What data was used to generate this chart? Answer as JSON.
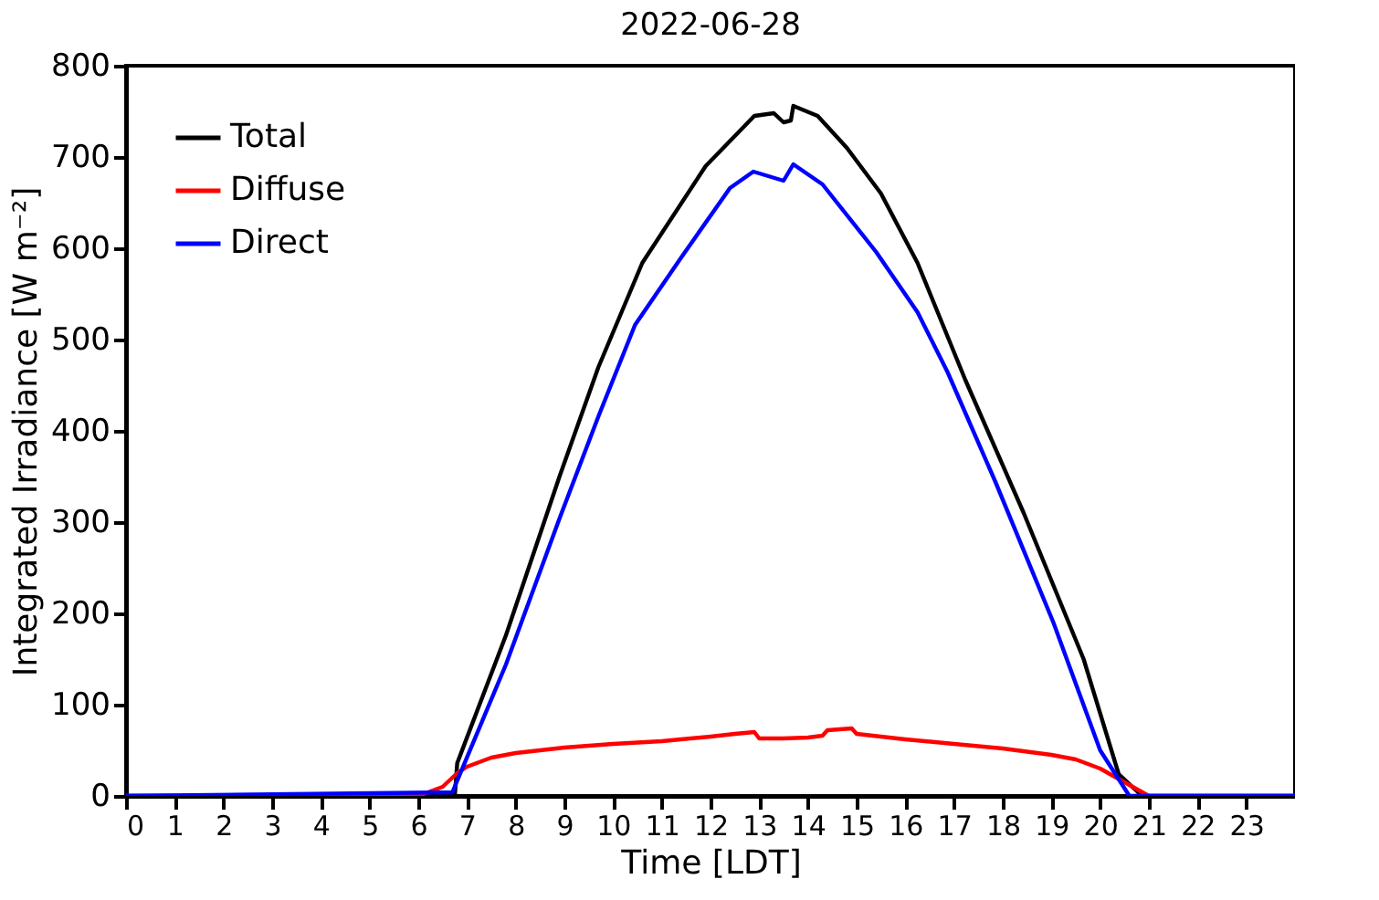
{
  "chart_data": {
    "type": "line",
    "title": "2022-06-28",
    "xlabel": "Time [LDT]",
    "ylabel": "Integrated Irradiance [W m⁻²]",
    "xlim": [
      0,
      24
    ],
    "xticks": [
      0,
      1,
      2,
      3,
      4,
      5,
      6,
      7,
      8,
      9,
      10,
      11,
      12,
      13,
      14,
      15,
      16,
      17,
      18,
      19,
      20,
      21,
      22,
      23
    ],
    "ylim": [
      0,
      800
    ],
    "yticks": [
      0,
      100,
      200,
      300,
      400,
      500,
      600,
      700,
      800
    ],
    "grid": false,
    "legend": "top left",
    "marker": "none",
    "line_style": "solid",
    "series": [
      {
        "name": "Total",
        "color": "#000000",
        "x": [
          0,
          6.75,
          6.8,
          7.8,
          8.9,
          9.7,
          10.6,
          11.9,
          12.9,
          13.3,
          13.5,
          13.65,
          13.7,
          14.2,
          14.8,
          15.5,
          16.25,
          17.23,
          18.43,
          19.66,
          20.38,
          20.86,
          24
        ],
        "values": [
          0,
          0,
          36,
          176,
          350,
          470,
          584,
          690,
          745,
          748,
          738,
          740,
          756,
          745,
          710,
          660,
          584,
          456,
          310,
          150,
          24,
          0,
          0
        ]
      },
      {
        "name": "Diffuse",
        "color": "#ff0000",
        "x": [
          0,
          6.0,
          6.5,
          6.8,
          7,
          7.5,
          8,
          9,
          10,
          11,
          12,
          12.5,
          12.9,
          13,
          13.5,
          14,
          14.3,
          14.4,
          14.9,
          15,
          16,
          17,
          18,
          19,
          19.5,
          20,
          20.5,
          20.9,
          21,
          24
        ],
        "values": [
          0,
          0,
          10,
          25,
          32,
          42,
          47,
          53,
          57,
          60,
          65,
          68,
          70,
          63,
          63,
          64,
          66,
          72,
          74,
          68,
          62,
          57,
          52,
          45,
          40,
          30,
          15,
          3,
          0,
          0
        ]
      },
      {
        "name": "Direct",
        "color": "#0000ff",
        "x": [
          0,
          6.7,
          7.8,
          8.9,
          9.7,
          10.45,
          11.4,
          12.4,
          12.88,
          13.5,
          13.7,
          14.3,
          15.4,
          16.25,
          16.87,
          17.85,
          19.04,
          20.0,
          20.6,
          24
        ],
        "values": [
          0,
          4,
          144,
          304,
          416,
          516,
          590,
          666,
          684,
          674,
          692,
          670,
          596,
          530,
          464,
          344,
          190,
          50,
          0,
          0
        ]
      }
    ]
  }
}
